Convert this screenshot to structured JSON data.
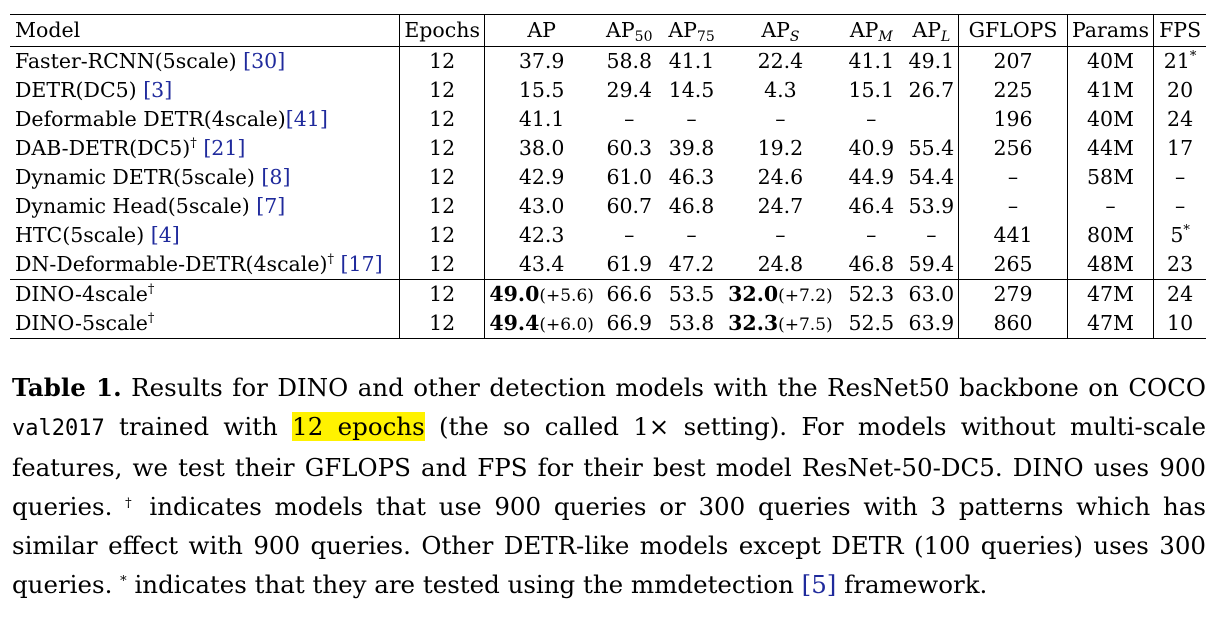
{
  "table": {
    "headers": {
      "model": "Model",
      "epochs": "Epochs",
      "ap": "AP",
      "ap50_base": "AP",
      "ap50_sub": "50",
      "ap75_base": "AP",
      "ap75_sub": "75",
      "aps_base": "AP",
      "aps_sub": "S",
      "apm_base": "AP",
      "apm_sub": "M",
      "apl_base": "AP",
      "apl_sub": "L",
      "gflops": "GFLOPS",
      "params": "Params",
      "fps": "FPS"
    },
    "rows": [
      {
        "model": "Faster-RCNN(5scale) ",
        "cite": "[30]",
        "mark": "",
        "epochs": "12",
        "ap": "37.9",
        "ap50": "58.8",
        "ap75": "41.1",
        "aps": "22.4",
        "apm": "41.1",
        "apl": "49.1",
        "gflops": "207",
        "params": "40M",
        "fps": "21",
        "fps_mark": "*"
      },
      {
        "model": "DETR(DC5) ",
        "cite": "[3]",
        "mark": "",
        "epochs": "12",
        "ap": "15.5",
        "ap50": "29.4",
        "ap75": "14.5",
        "aps": "4.3",
        "apm": "15.1",
        "apl": "26.7",
        "gflops": "225",
        "params": "41M",
        "fps": "20",
        "fps_mark": ""
      },
      {
        "model": "Deformable DETR(4scale)",
        "cite": "[41]",
        "mark": "",
        "epochs": "12",
        "ap": "41.1",
        "ap50": "–",
        "ap75": "–",
        "aps": "–",
        "apm": "–",
        "apl": "",
        "gflops": "196",
        "params": "40M",
        "fps": "24",
        "fps_mark": ""
      },
      {
        "model": "DAB-DETR(DC5)",
        "cite": "[21]",
        "mark": "†",
        "epochs": "12",
        "ap": "38.0",
        "ap50": "60.3",
        "ap75": "39.8",
        "aps": "19.2",
        "apm": "40.9",
        "apl": "55.4",
        "gflops": "256",
        "params": "44M",
        "fps": "17",
        "fps_mark": ""
      },
      {
        "model": "Dynamic DETR(5scale) ",
        "cite": "[8]",
        "mark": "",
        "epochs": "12",
        "ap": "42.9",
        "ap50": "61.0",
        "ap75": "46.3",
        "aps": "24.6",
        "apm": "44.9",
        "apl": "54.4",
        "gflops": "–",
        "params": "58M",
        "fps": "–",
        "fps_mark": ""
      },
      {
        "model": "Dynamic Head(5scale) ",
        "cite": "[7]",
        "mark": "",
        "epochs": "12",
        "ap": "43.0",
        "ap50": "60.7",
        "ap75": "46.8",
        "aps": "24.7",
        "apm": "46.4",
        "apl": "53.9",
        "gflops": "–",
        "params": "–",
        "fps": "–",
        "fps_mark": ""
      },
      {
        "model": "HTC(5scale) ",
        "cite": "[4]",
        "mark": "",
        "epochs": "12",
        "ap": "42.3",
        "ap50": "–",
        "ap75": "–",
        "aps": "–",
        "apm": "–",
        "apl": "–",
        "gflops": "441",
        "params": "80M",
        "fps": "5",
        "fps_mark": "*"
      },
      {
        "model": "DN-Deformable-DETR(4scale)",
        "cite": "[17]",
        "mark": "†",
        "epochs": "12",
        "ap": "43.4",
        "ap50": "61.9",
        "ap75": "47.2",
        "aps": "24.8",
        "apm": "46.8",
        "apl": "59.4",
        "gflops": "265",
        "params": "48M",
        "fps": "23",
        "fps_mark": ""
      }
    ],
    "dino_rows": [
      {
        "model": "DINO-4scale",
        "mark": "†",
        "epochs": "12",
        "ap": "49.0",
        "ap_delta": "(+5.6)",
        "ap50": "66.6",
        "ap75": "53.5",
        "aps": "32.0",
        "aps_delta": "(+7.2)",
        "apm": "52.3",
        "apl": "63.0",
        "gflops": "279",
        "params": "47M",
        "fps": "24"
      },
      {
        "model": "DINO-5scale",
        "mark": "†",
        "epochs": "12",
        "ap": "49.4",
        "ap_delta": "(+6.0)",
        "ap50": "66.9",
        "ap75": "53.8",
        "aps": "32.3",
        "aps_delta": "(+7.5)",
        "apm": "52.5",
        "apl": "63.9",
        "gflops": "860",
        "params": "47M",
        "fps": "10"
      }
    ]
  },
  "caption": {
    "label": "Table 1.",
    "t1": " Results for DINO and other detection models with the ResNet50 backbone on COCO ",
    "code": "val2017",
    "t2": " trained with ",
    "highlight": "12 epochs",
    "t3": " (the so called 1× setting). For models without multi-scale features, we test their GFLOPS and FPS for their best model ResNet-50-DC5. DINO uses 900 queries. ",
    "dagger": "†",
    "t4": " indicates models that use 900 queries or 300 queries with 3 patterns which has similar effect with 900 queries. Other DETR-like models except DETR (100 queries) uses 300 queries. ",
    "star": "*",
    "t5": " indicates that they are tested using the mmdetection ",
    "cite": "[5]",
    "t6": " framework.",
    "highlight_color": "#fff200"
  }
}
